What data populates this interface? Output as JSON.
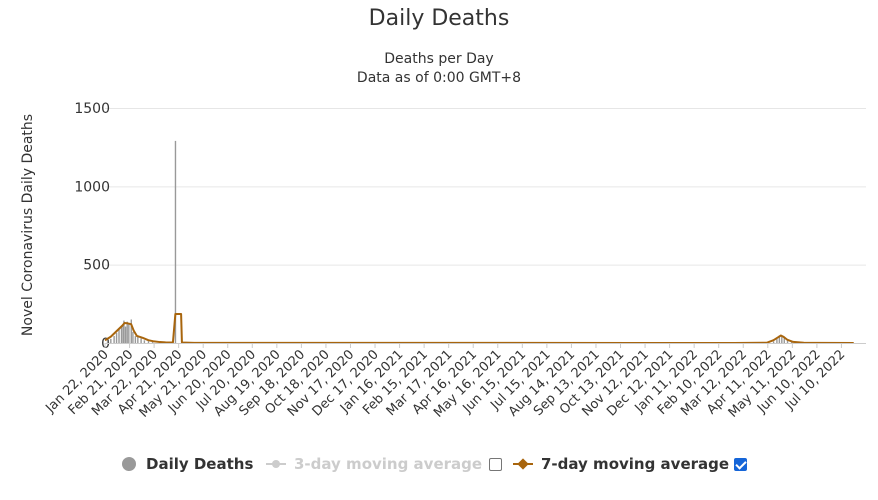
{
  "chart_data": {
    "type": "bar+line",
    "title": "Daily Deaths",
    "subtitle_lines": [
      "Deaths per Day",
      "Data as of 0:00 GMT+8"
    ],
    "xlabel": "",
    "ylabel": "Novel Coronavirus Daily Deaths",
    "ylim": [
      0,
      1500
    ],
    "yticks": [
      0,
      500,
      1000,
      1500
    ],
    "grid": true,
    "legend_position": "bottom",
    "x_tick_labels": [
      "Jan 22, 2020",
      "Feb 21, 2020",
      "Mar 22, 2020",
      "Apr 21, 2020",
      "May 21, 2020",
      "Jun 20, 2020",
      "Jul 20, 2020",
      "Aug 19, 2020",
      "Sep 18, 2020",
      "Oct 18, 2020",
      "Nov 17, 2020",
      "Dec 17, 2020",
      "Jan 16, 2021",
      "Feb 15, 2021",
      "Mar 17, 2021",
      "Apr 16, 2021",
      "May 16, 2021",
      "Jun 15, 2021",
      "Jul 15, 2021",
      "Aug 14, 2021",
      "Sep 13, 2021",
      "Oct 13, 2021",
      "Nov 12, 2021",
      "Dec 12, 2021",
      "Jan 11, 2022",
      "Feb 10, 2022",
      "Mar 12, 2022",
      "Apr 11, 2022",
      "May 11, 2022",
      "Jun 10, 2022",
      "Jul 10, 2022"
    ],
    "series": [
      {
        "name": "Daily Deaths",
        "kind": "bar",
        "color": "#999999",
        "points": [
          [
            "2020-01-25",
            15
          ],
          [
            "2020-01-29",
            26
          ],
          [
            "2020-02-02",
            45
          ],
          [
            "2020-02-05",
            65
          ],
          [
            "2020-02-08",
            89
          ],
          [
            "2020-02-11",
            108
          ],
          [
            "2020-02-13",
            121
          ],
          [
            "2020-02-14",
            143
          ],
          [
            "2020-02-16",
            105
          ],
          [
            "2020-02-18",
            136
          ],
          [
            "2020-02-20",
            118
          ],
          [
            "2020-02-23",
            150
          ],
          [
            "2020-02-25",
            71
          ],
          [
            "2020-02-28",
            44
          ],
          [
            "2020-03-02",
            42
          ],
          [
            "2020-03-06",
            30
          ],
          [
            "2020-03-10",
            17
          ],
          [
            "2020-03-15",
            12
          ],
          [
            "2020-03-20",
            6
          ],
          [
            "2020-03-30",
            3
          ],
          [
            "2020-04-10",
            2
          ],
          [
            "2020-04-17",
            1290
          ],
          [
            "2022-04-18",
            10
          ],
          [
            "2022-04-22",
            25
          ],
          [
            "2022-04-25",
            48
          ],
          [
            "2022-04-28",
            40
          ],
          [
            "2022-05-01",
            32
          ],
          [
            "2022-05-05",
            15
          ],
          [
            "2022-05-10",
            6
          ]
        ]
      },
      {
        "name": "3-day moving average",
        "kind": "line",
        "color": "#cccccc",
        "enabled": false
      },
      {
        "name": "7-day moving average",
        "kind": "line",
        "color": "#a8650d",
        "enabled": true,
        "points": [
          [
            "2020-01-22",
            17
          ],
          [
            "2020-01-29",
            40
          ],
          [
            "2020-02-05",
            75
          ],
          [
            "2020-02-12",
            110
          ],
          [
            "2020-02-15",
            128
          ],
          [
            "2020-02-19",
            125
          ],
          [
            "2020-02-23",
            120
          ],
          [
            "2020-02-26",
            80
          ],
          [
            "2020-03-01",
            45
          ],
          [
            "2020-03-08",
            33
          ],
          [
            "2020-03-15",
            18
          ],
          [
            "2020-03-22",
            10
          ],
          [
            "2020-03-29",
            6
          ],
          [
            "2020-04-05",
            4
          ],
          [
            "2020-04-14",
            3
          ],
          [
            "2020-04-17",
            185
          ],
          [
            "2020-04-22",
            185
          ],
          [
            "2020-04-24",
            185
          ],
          [
            "2020-04-25",
            3
          ],
          [
            "2020-05-10",
            1
          ],
          [
            "2022-03-01",
            0
          ],
          [
            "2022-04-10",
            2
          ],
          [
            "2022-04-18",
            18
          ],
          [
            "2022-04-24",
            38
          ],
          [
            "2022-04-27",
            48
          ],
          [
            "2022-04-30",
            40
          ],
          [
            "2022-05-05",
            20
          ],
          [
            "2022-05-12",
            7
          ],
          [
            "2022-05-25",
            2
          ],
          [
            "2022-06-10",
            1
          ],
          [
            "2022-07-25",
            0
          ]
        ]
      }
    ]
  }
}
